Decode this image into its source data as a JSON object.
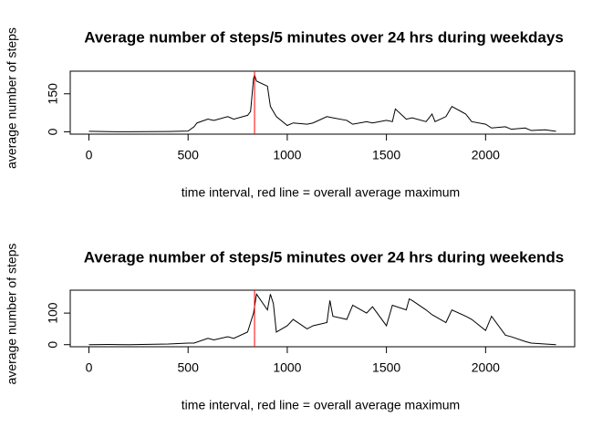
{
  "chart_data": [
    {
      "type": "line",
      "title": "Average number of steps/5 minutes over 24 hrs during weekdays",
      "xlabel": "time interval, red line = overall average maximum",
      "ylabel": "average number of steps",
      "x": [
        0,
        100,
        200,
        300,
        400,
        500,
        530,
        545,
        600,
        630,
        700,
        730,
        800,
        815,
        830,
        835,
        845,
        900,
        915,
        930,
        945,
        1000,
        1030,
        1100,
        1130,
        1200,
        1230,
        1300,
        1330,
        1400,
        1430,
        1500,
        1530,
        1545,
        1600,
        1630,
        1700,
        1730,
        1745,
        1800,
        1830,
        1900,
        1930,
        2000,
        2030,
        2100,
        2130,
        2200,
        2230,
        2300,
        2355
      ],
      "series": [
        {
          "name": "steps",
          "color": "#000000",
          "values": [
            2,
            0.5,
            0.3,
            0.5,
            1,
            3,
            20,
            35,
            50,
            45,
            60,
            50,
            65,
            80,
            210,
            224,
            200,
            180,
            100,
            80,
            60,
            25,
            35,
            30,
            35,
            60,
            55,
            45,
            30,
            40,
            35,
            45,
            40,
            90,
            50,
            55,
            40,
            70,
            40,
            60,
            100,
            70,
            40,
            30,
            15,
            20,
            10,
            15,
            5,
            8,
            2
          ]
        }
      ],
      "vline": {
        "value": 835,
        "color": "#ff0000"
      },
      "xlim": [
        -94.2,
        2449.2
      ],
      "xticks": [
        0,
        500,
        1000,
        1500,
        2000
      ],
      "ylim": [
        -9.2,
        239.2
      ],
      "yticks": [
        0,
        150
      ]
    },
    {
      "type": "line",
      "title": "Average number of steps/5 minutes over 24 hrs during weekends",
      "xlabel": "time interval, red line = overall average maximum",
      "ylabel": "average number of steps",
      "x": [
        0,
        100,
        200,
        300,
        400,
        500,
        530,
        600,
        630,
        700,
        730,
        800,
        815,
        830,
        845,
        900,
        915,
        930,
        945,
        1000,
        1030,
        1100,
        1130,
        1200,
        1215,
        1230,
        1300,
        1330,
        1400,
        1430,
        1500,
        1530,
        1600,
        1615,
        1630,
        1700,
        1730,
        1800,
        1830,
        1900,
        1930,
        2000,
        2030,
        2100,
        2130,
        2200,
        2230,
        2300,
        2355
      ],
      "series": [
        {
          "name": "steps",
          "color": "#000000",
          "values": [
            0,
            0.5,
            0,
            1,
            2,
            5,
            5,
            20,
            15,
            25,
            20,
            40,
            70,
            100,
            160,
            110,
            160,
            130,
            40,
            60,
            80,
            50,
            60,
            70,
            140,
            90,
            80,
            125,
            100,
            120,
            60,
            125,
            110,
            145,
            140,
            110,
            95,
            70,
            110,
            90,
            80,
            45,
            90,
            30,
            25,
            10,
            5,
            2,
            0
          ]
        }
      ],
      "vline": {
        "value": 835,
        "color": "#ff0000"
      },
      "xlim": [
        -94.2,
        2449.2
      ],
      "xticks": [
        0,
        500,
        1000,
        1500,
        2000
      ],
      "ylim": [
        -6.6,
        172.6
      ],
      "yticks": [
        0,
        100
      ]
    }
  ]
}
